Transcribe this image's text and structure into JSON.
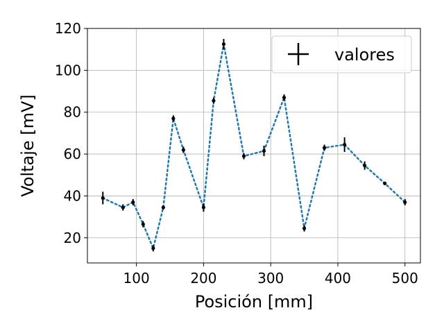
{
  "chart_data": {
    "type": "line",
    "title": "",
    "xlabel": "Posición [mm]",
    "ylabel": "Voltaje [mV]",
    "xlim": [
      27,
      523
    ],
    "ylim": [
      8,
      120
    ],
    "xticks": [
      100,
      200,
      300,
      400,
      500
    ],
    "yticks": [
      20,
      40,
      60,
      80,
      100,
      120
    ],
    "grid": true,
    "legend_position": "top-right",
    "series": [
      {
        "name": "valores",
        "line_color": "#1f77b4",
        "marker_color": "#000000",
        "x": [
          50,
          80,
          95,
          110,
          125,
          140,
          155,
          170,
          200,
          215,
          230,
          260,
          290,
          320,
          350,
          380,
          410,
          440,
          470,
          500
        ],
        "y": [
          39,
          34.5,
          37,
          26.5,
          15,
          34.5,
          77,
          62,
          34.5,
          85.5,
          112.5,
          59,
          61.5,
          87,
          24.5,
          63,
          64.5,
          54.5,
          46,
          37
        ],
        "yerr": [
          3,
          1.5,
          1.5,
          1.5,
          1.5,
          1,
          1.5,
          1.5,
          2,
          1.5,
          2.5,
          1.5,
          2.5,
          1.5,
          1.5,
          1.5,
          3.5,
          2,
          0.8,
          1.5
        ]
      }
    ]
  }
}
